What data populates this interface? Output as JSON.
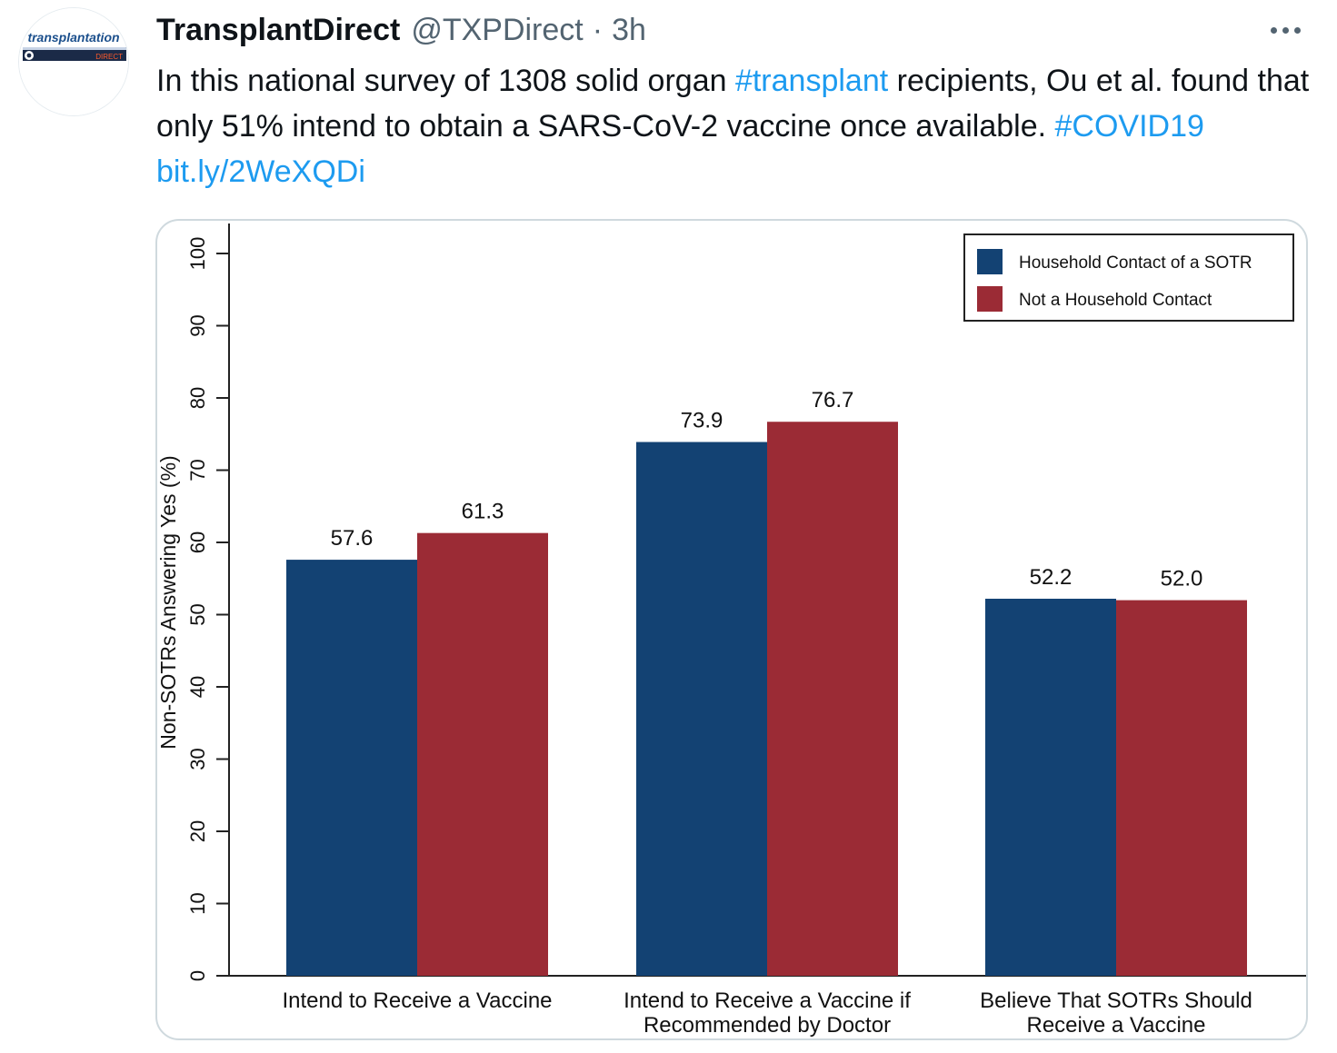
{
  "tweet": {
    "display_name": "TransplantDirect",
    "handle": "@TXPDirect",
    "separator": "·",
    "time": "3h",
    "text_part1": "In this national survey of 1308 solid organ ",
    "hashtag_transplant": "#transplant",
    "text_part2": " recipients, Ou et al. found that only 51% intend to obtain a SARS-CoV-2 vaccine once available. ",
    "hashtag_covid": "#COVID19",
    "link": "bit.ly/2WeXQDi",
    "avatar_logo_text": "transplantation",
    "avatar_logo_subtext": "DIRECT",
    "more_icon": "more-horizontal-icon"
  },
  "colors": {
    "link": "#1d9bf0",
    "household": "#134273",
    "not_household": "#9b2b35",
    "muted_text": "#536471"
  },
  "chart_data": {
    "type": "bar",
    "categories": [
      [
        "Intend to Receive a Vaccine"
      ],
      [
        "Intend to Receive a Vaccine if",
        "Recommended by Doctor"
      ],
      [
        "Believe That SOTRs Should",
        "Receive a Vaccine"
      ]
    ],
    "series": [
      {
        "name": "Household Contact of a SOTR",
        "values": [
          57.6,
          73.9,
          52.2
        ],
        "labels": [
          "57.6",
          "73.9",
          "52.2"
        ]
      },
      {
        "name": "Not a Household Contact",
        "values": [
          61.3,
          76.7,
          52.0
        ],
        "labels": [
          "61.3",
          "76.7",
          "52.0"
        ]
      }
    ],
    "ylabel": "Non-SOTRs Answering Yes (%)",
    "ylim": [
      0,
      100
    ],
    "yticks": [
      "0",
      "10",
      "20",
      "30",
      "40",
      "50",
      "60",
      "70",
      "80",
      "90",
      "100"
    ],
    "legend_position": "top-right",
    "grid": false
  }
}
